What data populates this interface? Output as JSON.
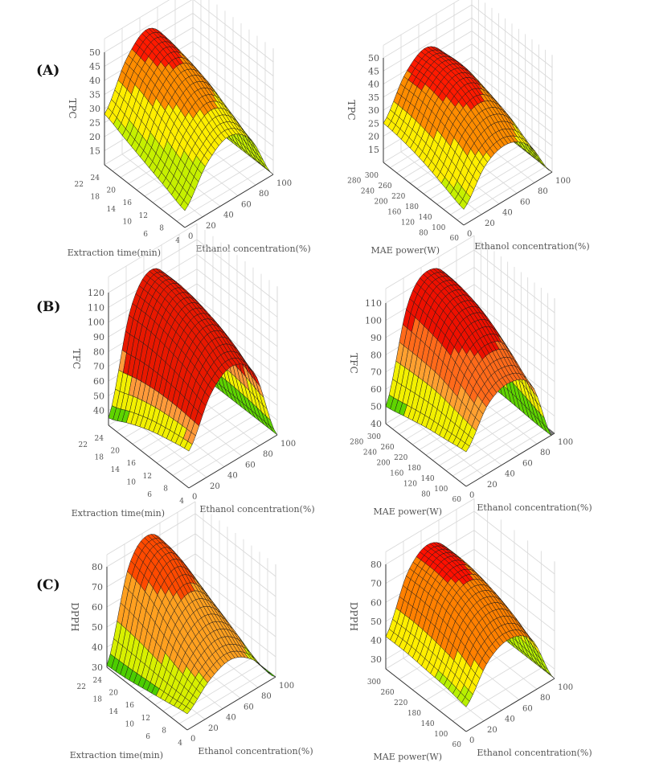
{
  "panel_labels": [
    "(A)",
    "(B)",
    "(C)"
  ],
  "colors": {
    "below_range": "#7a7a7a",
    "mesh_line": "#1a1a1a",
    "grid": "#d8d8d8",
    "axis": "#333333"
  },
  "chart_data": [
    {
      "type": "surface",
      "x_label": "Ethanol concentration(%)",
      "x_range": [
        0,
        100
      ],
      "x_ticks": [
        0,
        20,
        40,
        60,
        80,
        100
      ],
      "y_label": "Extraction time(min)",
      "y_range": [
        4,
        24
      ],
      "y_ticks": [
        4,
        6,
        8,
        10,
        12,
        14,
        16,
        18,
        20,
        22,
        24
      ],
      "z_label": "TPC",
      "z_range": [
        10,
        50
      ],
      "z_ticks": [
        15,
        20,
        25,
        30,
        35,
        40,
        45,
        50
      ],
      "grid_x": [
        0,
        25,
        50,
        75,
        100
      ],
      "grid_y": [
        4,
        9,
        14,
        19,
        24
      ],
      "z_grid": [
        [
          16,
          28,
          33,
          27,
          10
        ],
        [
          19,
          32,
          38,
          31,
          10
        ],
        [
          22,
          37,
          43,
          35,
          10
        ],
        [
          25,
          41,
          47,
          37,
          10
        ],
        [
          28,
          43,
          49,
          38,
          10
        ]
      ],
      "color_levels": [
        {
          "max": 28,
          "color": "#c6f000"
        },
        {
          "max": 37,
          "color": "#ffee00"
        },
        {
          "max": 45,
          "color": "#ff8c00"
        },
        {
          "max": 999,
          "color": "#ff1a00"
        }
      ]
    },
    {
      "type": "surface",
      "x_label": "Ethanol concentration(%)",
      "x_range": [
        0,
        100
      ],
      "x_ticks": [
        0,
        20,
        40,
        60,
        80,
        100
      ],
      "y_label": "MAE power(W)",
      "y_range": [
        60,
        300
      ],
      "y_ticks": [
        60,
        80,
        100,
        120,
        140,
        160,
        180,
        200,
        220,
        240,
        260,
        280,
        300
      ],
      "z_label": "TPC",
      "z_range": [
        10,
        50
      ],
      "z_ticks": [
        15,
        20,
        25,
        30,
        35,
        40,
        45,
        50
      ],
      "grid_x": [
        0,
        25,
        50,
        75,
        100
      ],
      "grid_y": [
        60,
        120,
        180,
        240,
        300
      ],
      "z_grid": [
        [
          16,
          28,
          31,
          25,
          10
        ],
        [
          19,
          33,
          37,
          30,
          10
        ],
        [
          22,
          37,
          42,
          33,
          10
        ],
        [
          24,
          39,
          44,
          35,
          10
        ],
        [
          25,
          39,
          44,
          34,
          10
        ]
      ],
      "color_levels": [
        {
          "max": 20,
          "color": "#c6f000"
        },
        {
          "max": 30,
          "color": "#ffee00"
        },
        {
          "max": 39,
          "color": "#ff8c00"
        },
        {
          "max": 999,
          "color": "#ff1a00"
        }
      ]
    },
    {
      "type": "surface",
      "x_label": "Ethanol concentration(%)",
      "x_range": [
        0,
        100
      ],
      "x_ticks": [
        0,
        20,
        40,
        60,
        80,
        100
      ],
      "y_label": "Extraction time(min)",
      "y_range": [
        4,
        24
      ],
      "y_ticks": [
        4,
        6,
        8,
        10,
        12,
        14,
        16,
        18,
        20,
        22,
        24
      ],
      "z_label": "TFC",
      "z_range": [
        30,
        120
      ],
      "z_ticks": [
        40,
        50,
        60,
        70,
        80,
        90,
        100,
        110,
        120
      ],
      "grid_x": [
        0,
        25,
        50,
        75,
        100
      ],
      "grid_y": [
        4,
        9,
        14,
        19,
        24
      ],
      "z_grid": [
        [
          55,
          85,
          95,
          80,
          30
        ],
        [
          52,
          92,
          105,
          88,
          30
        ],
        [
          48,
          97,
          112,
          93,
          30
        ],
        [
          42,
          100,
          117,
          95,
          30
        ],
        [
          35,
          100,
          118,
          94,
          30
        ]
      ],
      "color_levels": [
        {
          "max": 45,
          "color": "#5fd400"
        },
        {
          "max": 60,
          "color": "#f2f000"
        },
        {
          "max": 70,
          "color": "#ff9a3a"
        },
        {
          "max": 999,
          "color": "#e81800"
        }
      ]
    },
    {
      "type": "surface",
      "x_label": "Ethanol concentration(%)",
      "x_range": [
        0,
        100
      ],
      "x_ticks": [
        0,
        20,
        40,
        60,
        80,
        100
      ],
      "y_label": "MAE power(W)",
      "y_range": [
        60,
        300
      ],
      "y_ticks": [
        60,
        80,
        100,
        120,
        140,
        160,
        180,
        200,
        220,
        240,
        260,
        280,
        300
      ],
      "z_label": "TFC",
      "z_range": [
        40,
        110
      ],
      "z_ticks": [
        40,
        50,
        60,
        70,
        80,
        90,
        100,
        110
      ],
      "grid_x": [
        0,
        25,
        50,
        75,
        100
      ],
      "grid_y": [
        60,
        120,
        180,
        240,
        300
      ],
      "z_grid": [
        [
          60,
          80,
          85,
          75,
          35
        ],
        [
          58,
          88,
          96,
          84,
          35
        ],
        [
          56,
          96,
          106,
          92,
          35
        ],
        [
          53,
          100,
          112,
          96,
          35
        ],
        [
          50,
          102,
          114,
          97,
          35
        ]
      ],
      "color_levels": [
        {
          "max": 55,
          "color": "#5fd400"
        },
        {
          "max": 70,
          "color": "#f2f000"
        },
        {
          "max": 80,
          "color": "#ffa030"
        },
        {
          "max": 95,
          "color": "#ff6a1a"
        },
        {
          "max": 999,
          "color": "#ee1000"
        }
      ]
    },
    {
      "type": "surface",
      "x_label": "Ethanol concentration(%)",
      "x_range": [
        0,
        100
      ],
      "x_ticks": [
        0,
        20,
        40,
        60,
        80,
        100
      ],
      "y_label": "Extraction time(min)",
      "y_range": [
        4,
        24
      ],
      "y_ticks": [
        4,
        6,
        8,
        10,
        12,
        14,
        16,
        18,
        20,
        22,
        24
      ],
      "z_label": "DPPH",
      "z_range": [
        30,
        80
      ],
      "z_ticks": [
        30,
        40,
        50,
        60,
        70,
        80
      ],
      "grid_x": [
        0,
        25,
        50,
        75,
        100
      ],
      "grid_y": [
        4,
        9,
        14,
        19,
        24
      ],
      "z_grid": [
        [
          38,
          48,
          52,
          45,
          30
        ],
        [
          36,
          54,
          60,
          52,
          30
        ],
        [
          34,
          62,
          70,
          58,
          30
        ],
        [
          32,
          70,
          80,
          63,
          30
        ],
        [
          31,
          74,
          83,
          65,
          30
        ]
      ],
      "color_levels": [
        {
          "max": 36,
          "color": "#4ccd00"
        },
        {
          "max": 48,
          "color": "#d8f000"
        },
        {
          "max": 70,
          "color": "#ffa020"
        },
        {
          "max": 999,
          "color": "#ff4a00"
        }
      ]
    },
    {
      "type": "surface",
      "x_label": "Ethanol concentration(%)",
      "x_range": [
        0,
        100
      ],
      "x_ticks": [
        0,
        20,
        40,
        60,
        80,
        100
      ],
      "y_label": "MAE power(W)",
      "y_range": [
        60,
        300
      ],
      "y_ticks": [
        60,
        100,
        140,
        180,
        220,
        260,
        300
      ],
      "z_label": "DPPH",
      "z_range": [
        25,
        80
      ],
      "z_ticks": [
        30,
        40,
        50,
        60,
        70,
        80
      ],
      "grid_x": [
        0,
        25,
        50,
        75,
        100
      ],
      "grid_y": [
        60,
        120,
        180,
        240,
        300
      ],
      "z_grid": [
        [
          38,
          55,
          60,
          52,
          25
        ],
        [
          40,
          62,
          68,
          58,
          25
        ],
        [
          41,
          67,
          74,
          62,
          25
        ],
        [
          42,
          69,
          77,
          64,
          25
        ],
        [
          42,
          69,
          77,
          64,
          25
        ]
      ],
      "color_levels": [
        {
          "max": 42,
          "color": "#b8f000"
        },
        {
          "max": 52,
          "color": "#ffee00"
        },
        {
          "max": 74,
          "color": "#ff8000"
        },
        {
          "max": 999,
          "color": "#ff1000"
        }
      ]
    }
  ]
}
